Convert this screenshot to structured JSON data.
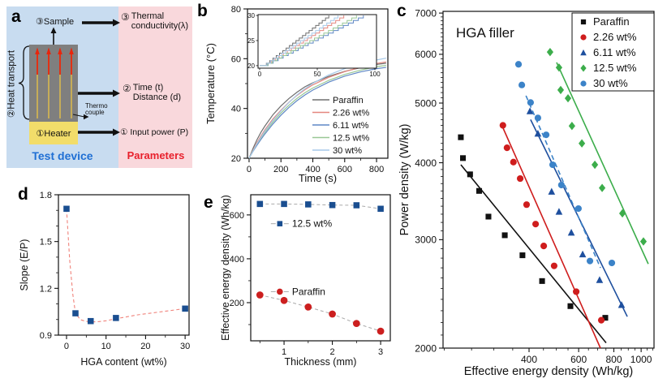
{
  "figure": {
    "panel_labels": {
      "a": "a",
      "b": "b",
      "c": "c",
      "d": "d",
      "e": "e"
    }
  },
  "panel_a": {
    "sample": "③Sample",
    "heat_transport": "②Heat transport",
    "heater": "①Heater",
    "thermo_line1": "Thermo",
    "thermo_line2": "couple",
    "test_device": "Test device",
    "parameters": "Parameters",
    "param3_num": "③",
    "param3_line1": "Thermal",
    "param3_line2": "conductivity(λ)",
    "param2_num": "②",
    "param2_line1": "Time (t)",
    "param2_line2": "Distance (d)",
    "param1": "① Input power (P)",
    "colors": {
      "device_bg": "#c8dcf0",
      "params_bg": "#f9d8dc",
      "sample_box": "#7f7f7f",
      "heater_bg": "#f2dd6a",
      "arrow_red": "#e8250c",
      "wire_yellow": "#d8b84f",
      "test_device_text": "#1f6fd4",
      "parameters_text": "#e8202c"
    }
  },
  "chart_data": [
    {
      "id": "b",
      "type": "line",
      "xlabel": "Time (s)",
      "ylabel": "Temperature (°C)",
      "xlim": [
        -10,
        871
      ],
      "ylim": [
        20,
        80
      ],
      "xticks": [
        0,
        200,
        400,
        600,
        800
      ],
      "yticks": [
        20,
        40,
        60,
        80
      ],
      "x": [
        0,
        25,
        50,
        75,
        100,
        150,
        200,
        250,
        300,
        350,
        400,
        500,
        600,
        700,
        800,
        860
      ],
      "series": [
        {
          "name": "Paraffin",
          "color": "#6e6e6e",
          "y": [
            20,
            24.0,
            27.5,
            30.5,
            33.0,
            37.5,
            41.0,
            44.0,
            46.5,
            48.7,
            50.3,
            52.9,
            54.9,
            56.4,
            57.7,
            58.2
          ]
        },
        {
          "name": "2.26 wt%",
          "color": "#e4867e",
          "y": [
            20,
            23.2,
            26.3,
            29.0,
            31.5,
            35.8,
            39.3,
            42.5,
            45.2,
            47.5,
            49.5,
            52.5,
            54.8,
            56.6,
            58.1,
            58.7
          ]
        },
        {
          "name": "6.11 wt%",
          "color": "#5f87c5",
          "y": [
            20,
            22.8,
            25.3,
            27.6,
            29.8,
            33.8,
            37.3,
            40.4,
            43.1,
            45.4,
            47.4,
            50.6,
            53.0,
            54.7,
            56.0,
            56.5
          ]
        },
        {
          "name": "12.5 wt%",
          "color": "#99c795",
          "y": [
            20,
            23.0,
            25.8,
            28.2,
            30.5,
            34.6,
            38.2,
            41.3,
            44.0,
            46.3,
            48.2,
            51.3,
            53.7,
            55.4,
            56.8,
            57.3
          ]
        },
        {
          "name": "30 wt%",
          "color": "#a6c9e9",
          "y": [
            20,
            23.0,
            25.9,
            28.5,
            31.0,
            35.3,
            39.0,
            42.4,
            45.4,
            47.9,
            50.1,
            53.5,
            56.0,
            57.9,
            59.5,
            60.2
          ]
        }
      ],
      "inset": {
        "xlim": [
          0,
          100
        ],
        "ylim": [
          20,
          30
        ],
        "xticks": [
          0,
          50,
          100
        ],
        "yticks": [
          20,
          25,
          30
        ],
        "time_to_30C": [
          60,
          73,
          90,
          84,
          68
        ]
      }
    },
    {
      "id": "c",
      "type": "scatter",
      "log": true,
      "title": "HGA filler",
      "xlabel": "Effective energy density (Wh/kg)",
      "ylabel": "Power density (W/kg)",
      "xlim": [
        198,
        1111
      ],
      "ylim": [
        2000,
        7045
      ],
      "xticks": [
        400,
        600,
        800,
        1000
      ],
      "yticks": [
        2000,
        3000,
        4000,
        5000,
        6000,
        7000
      ],
      "series": [
        {
          "name": "Paraffin",
          "marker": "square",
          "color": "#111111",
          "fit_style": "solid",
          "points": [
            [
              229,
              4400
            ],
            [
              233,
              4070
            ],
            [
              247,
              3830
            ],
            [
              266,
              3600
            ],
            [
              287,
              3270
            ],
            [
              328,
              3050
            ],
            [
              379,
              2830
            ],
            [
              445,
              2570
            ],
            [
              561,
              2340
            ],
            [
              746,
              2240
            ]
          ],
          "fit": [
            [
              229,
              3970
            ],
            [
              751,
              2040
            ]
          ]
        },
        {
          "name": "2.26 wt%",
          "marker": "circle",
          "color": "#cf1d1d",
          "fit_style": "solid",
          "points": [
            [
              323,
              4600
            ],
            [
              334,
              4230
            ],
            [
              352,
              4010
            ],
            [
              372,
              3770
            ],
            [
              392,
              3420
            ],
            [
              422,
              3180
            ],
            [
              451,
              2930
            ],
            [
              491,
              2720
            ],
            [
              588,
              2470
            ],
            [
              722,
              2220
            ]
          ],
          "fit": [
            [
              323,
              4560
            ],
            [
              717,
              2000
            ]
          ]
        },
        {
          "name": "6.11 wt%",
          "marker": "triangle",
          "color": "#1e4f9e",
          "fit_style": "solid",
          "points": [
            [
              403,
              4850
            ],
            [
              430,
              4460
            ],
            [
              481,
              3590
            ],
            [
              511,
              3330
            ],
            [
              565,
              3080
            ],
            [
              620,
              2840
            ],
            [
              712,
              2580
            ],
            [
              852,
              2350
            ]
          ],
          "fit": [
            [
              405,
              4700
            ],
            [
              893,
              2250
            ]
          ]
        },
        {
          "name": "12.5 wt%",
          "marker": "diamond",
          "color": "#3cad4b",
          "fit_style": "solid",
          "points": [
            [
              475,
              6050
            ],
            [
              511,
              5710
            ],
            [
              518,
              5250
            ],
            [
              550,
              5090
            ],
            [
              568,
              4590
            ],
            [
              616,
              4300
            ],
            [
              685,
              3970
            ],
            [
              727,
              3640
            ],
            [
              858,
              3310
            ],
            [
              1019,
              2980
            ]
          ],
          "fit": [
            [
              501,
              5820
            ],
            [
              1060,
              2740
            ]
          ]
        },
        {
          "name": "30 wt%",
          "marker": "circle",
          "color": "#3c83c8",
          "fit_style": "dashed",
          "points": [
            [
              367,
              5780
            ],
            [
              377,
              5350
            ],
            [
              405,
              5010
            ],
            [
              430,
              4730
            ],
            [
              460,
              4440
            ],
            [
              485,
              3970
            ],
            [
              521,
              3680
            ],
            [
              599,
              3370
            ],
            [
              658,
              2770
            ],
            [
              787,
              2750
            ]
          ],
          "fit": [
            [
              390,
              5140
            ],
            [
              717,
              2700
            ]
          ]
        }
      ]
    },
    {
      "id": "d",
      "type": "scatter-line",
      "xlabel": "HGA content (wt%)",
      "ylabel": "Slope (E/P)",
      "xlim": [
        -2.05,
        31.0
      ],
      "ylim": [
        0.9,
        1.8
      ],
      "xticks": [
        0,
        10,
        20,
        30
      ],
      "yticks": [
        0.9,
        1.2,
        1.5,
        1.8
      ],
      "marker_color": "#1a4e90",
      "curve_color": "#f0837b",
      "points": [
        [
          0,
          1.71
        ],
        [
          2.26,
          1.04
        ],
        [
          6.11,
          0.99
        ],
        [
          12.5,
          1.01
        ],
        [
          30,
          1.07
        ]
      ],
      "curve": [
        [
          0,
          1.71
        ],
        [
          0.8,
          1.38
        ],
        [
          1.6,
          1.16
        ],
        [
          2.26,
          1.04
        ],
        [
          3.5,
          0.999
        ],
        [
          5,
          0.988
        ],
        [
          6.11,
          0.985
        ],
        [
          8,
          0.986
        ],
        [
          10,
          0.992
        ],
        [
          12.5,
          1.005
        ],
        [
          18,
          1.03
        ],
        [
          24,
          1.05
        ],
        [
          30,
          1.07
        ]
      ]
    },
    {
      "id": "e",
      "type": "line-scatter",
      "xlabel": "Thickness (mm)",
      "ylabel": "Effective energy density (Wh/kg)",
      "xlim": [
        0.31,
        3.2
      ],
      "ylim": [
        26,
        692
      ],
      "xticks": [
        1,
        2,
        3
      ],
      "yticks": [
        200,
        400,
        600
      ],
      "connector_color": "#aaaaaa",
      "x": [
        0.5,
        1,
        1.5,
        2,
        2.5,
        3
      ],
      "series": [
        {
          "name": "12.5 wt%",
          "marker": "square",
          "color": "#1a4e90",
          "y": [
            650,
            650,
            648,
            645,
            644,
            628
          ],
          "label_pos": [
            1.08,
            560
          ]
        },
        {
          "name": "Paraffin",
          "marker": "circle",
          "color": "#cc1f1f",
          "y": [
            235,
            210,
            180,
            148,
            105,
            70
          ],
          "label_pos": [
            1.08,
            250
          ]
        }
      ]
    }
  ]
}
